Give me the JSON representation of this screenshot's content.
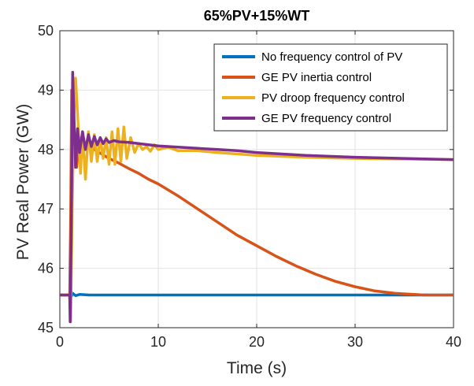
{
  "chart_data": {
    "type": "line",
    "title": "65%PV+15%WT",
    "xlabel": "Time (s)",
    "ylabel": "PV Real Power (GW)",
    "xlim": [
      0,
      40
    ],
    "ylim": [
      45,
      50
    ],
    "xticks": [
      0,
      10,
      20,
      30,
      40
    ],
    "yticks": [
      45,
      46,
      47,
      48,
      49,
      50
    ],
    "grid": true,
    "legend_position": "top-right",
    "series": [
      {
        "name": "No frequency control of PV",
        "color": "#0072BD",
        "x": [
          0,
          1.0,
          1.1,
          1.3,
          1.6,
          2,
          3,
          5,
          10,
          20,
          30,
          40
        ],
        "y": [
          45.55,
          45.55,
          45.5,
          45.58,
          45.54,
          45.56,
          45.55,
          45.55,
          45.55,
          45.55,
          45.55,
          45.55
        ]
      },
      {
        "name": "GE PV inertia control",
        "color": "#D95319",
        "x": [
          0,
          1.0,
          1.1,
          1.2,
          1.35,
          1.5,
          1.7,
          2.0,
          2.5,
          3.0,
          3.5,
          4.0,
          5.0,
          6.0,
          7.0,
          8.0,
          9.0,
          10.0,
          12.0,
          14.0,
          16.0,
          18.0,
          20.0,
          22.0,
          24.0,
          26.0,
          28.0,
          30.0,
          32.0,
          34.0,
          36.0,
          37.0,
          38.0,
          40.0
        ],
        "y": [
          45.55,
          45.55,
          46.9,
          49.0,
          48.8,
          48.0,
          47.7,
          48.2,
          48.05,
          48.1,
          48.0,
          47.95,
          47.85,
          47.77,
          47.68,
          47.6,
          47.5,
          47.42,
          47.22,
          47.0,
          46.78,
          46.56,
          46.38,
          46.2,
          46.04,
          45.9,
          45.78,
          45.69,
          45.62,
          45.58,
          45.56,
          45.55,
          45.55,
          45.55
        ]
      },
      {
        "name": "PV droop frequency control",
        "color": "#EDB120",
        "x": [
          0,
          1.0,
          1.1,
          1.25,
          1.45,
          1.6,
          1.8,
          2.1,
          2.3,
          2.6,
          2.9,
          3.2,
          3.5,
          3.8,
          4.1,
          4.4,
          4.7,
          5.0,
          5.3,
          5.6,
          5.9,
          6.2,
          6.5,
          6.8,
          7.2,
          7.6,
          8.0,
          8.4,
          8.8,
          9.2,
          9.6,
          10.0,
          11.0,
          12.0,
          14.0,
          16.0,
          20.0,
          25.0,
          30.0,
          35.0,
          40.0
        ],
        "y": [
          45.55,
          45.55,
          45.1,
          47.0,
          48.6,
          49.2,
          48.6,
          47.6,
          48.3,
          47.5,
          48.3,
          47.8,
          48.25,
          47.8,
          48.2,
          47.85,
          48.2,
          47.75,
          48.3,
          47.75,
          48.35,
          47.8,
          48.38,
          47.85,
          48.2,
          47.95,
          48.1,
          48.0,
          48.05,
          47.97,
          48.08,
          48.0,
          48.04,
          47.98,
          47.98,
          47.95,
          47.9,
          47.87,
          47.85,
          47.84,
          47.83
        ]
      },
      {
        "name": "GE PV frequency control",
        "color": "#7E2F8E",
        "x": [
          0,
          1.0,
          1.05,
          1.15,
          1.3,
          1.45,
          1.6,
          1.8,
          2.0,
          2.3,
          2.6,
          2.9,
          3.2,
          3.5,
          3.8,
          4.1,
          4.4,
          4.7,
          5.0,
          5.5,
          6.0,
          7.0,
          8.0,
          10.0,
          12.0,
          14.0,
          16.0,
          18.0,
          20.0,
          25.0,
          30.0,
          35.0,
          40.0
        ],
        "y": [
          45.55,
          45.55,
          45.1,
          46.5,
          49.3,
          48.5,
          47.7,
          48.35,
          47.95,
          48.3,
          48.0,
          48.25,
          48.05,
          48.22,
          48.08,
          48.2,
          48.1,
          48.18,
          48.12,
          48.15,
          48.13,
          48.12,
          48.1,
          48.06,
          48.04,
          48.02,
          48.0,
          47.98,
          47.95,
          47.9,
          47.87,
          47.85,
          47.83
        ]
      }
    ]
  }
}
